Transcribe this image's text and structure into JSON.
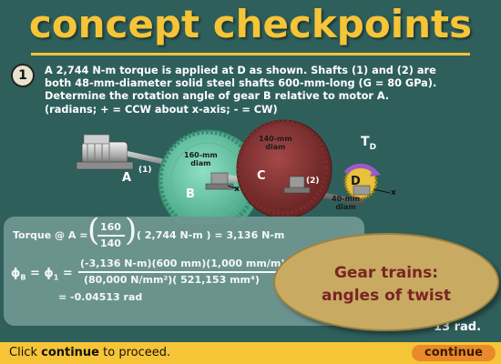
{
  "header": {
    "title": "concept checkpoints"
  },
  "problem": {
    "number": "1",
    "lines": [
      "A 2,744 N-m torque is applied at D as shown.  Shafts (1) and (2) are",
      "both 48-mm-diameter solid steel shafts 600-mm-long (G = 80 GPa).",
      "Determine the rotation angle of gear B relative to motor A.",
      "(radians; + = CCW about x-axis; - = CW)"
    ]
  },
  "diagram": {
    "label_A": "A",
    "label_B": "B",
    "label_C": "C",
    "label_D": "D",
    "label_T": "T",
    "label_T_sub": "D",
    "shaft1": "(1)",
    "shaft2": "(2)",
    "gear_B_diam": [
      "160-mm",
      "diam"
    ],
    "gear_C_diam": [
      "140-mm",
      "diam"
    ],
    "gear_D_diam": [
      "40-mm",
      "diam"
    ],
    "axis_x1": "x",
    "axis_x2": "x"
  },
  "solution": {
    "torque_label": "Torque @ A =",
    "ratio_num": "160",
    "ratio_den": "140",
    "torque_mult": "( 2,744 N-m ) = 3,136 N-m",
    "phi_label": "ϕ",
    "phi_sub_B": "B",
    "phi_eq": "= ϕ",
    "phi_sub_1": "1",
    "phi_eq2": "=",
    "numerator": "(-3,136 N-m)(600 mm)(1,000 mm/m)",
    "denominator": "(80,000 N/mm²)( 521,153 mm⁴)",
    "result": "= -0.04513 rad"
  },
  "overlay": {
    "line1": "Gear trains:",
    "line2": "angles of twist",
    "partial_text": "13 rad."
  },
  "footer": {
    "prefix": "Click ",
    "keyword": "continue",
    "suffix": " to proceed.",
    "button_label": "continue"
  },
  "colors": {
    "background": "#2f5f5b",
    "title": "#f6c437",
    "footer": "#f6c437",
    "button": "#e98a2a",
    "oval": "#c8aa62",
    "oval_text": "#7a2424",
    "gear_B": "#6fc7a9",
    "gear_C": "#8b3535",
    "gear_D": "#e8c23a"
  }
}
